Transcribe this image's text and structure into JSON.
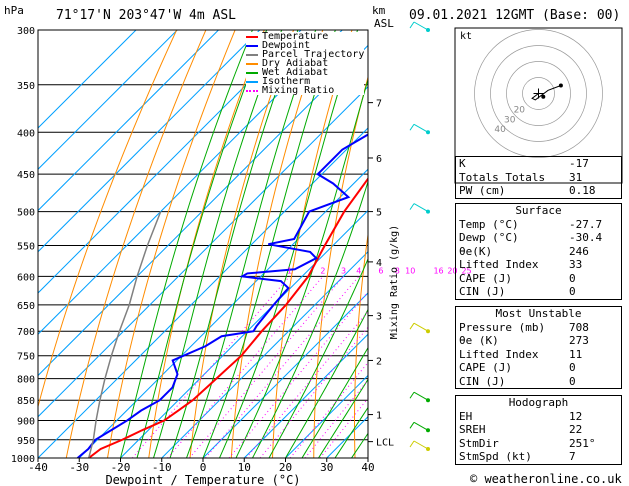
{
  "header": {
    "y_unit": "hPa",
    "location": "71°17'N  203°47'W  4m  ASL",
    "km_label": "km",
    "asl_label": "ASL",
    "datetime": "09.01.2021  12GMT  (Base: 00)"
  },
  "legend": [
    {
      "name": "Temperature",
      "color": "#ff0000",
      "style": "solid"
    },
    {
      "name": "Dewpoint",
      "color": "#0000ff",
      "style": "solid"
    },
    {
      "name": "Parcel Trajectory",
      "color": "#808080",
      "style": "solid"
    },
    {
      "name": "Dry Adiabat",
      "color": "#ff8c00",
      "style": "solid"
    },
    {
      "name": "Wet Adiabat",
      "color": "#00aa00",
      "style": "solid"
    },
    {
      "name": "Isotherm",
      "color": "#00a0ff",
      "style": "solid"
    },
    {
      "name": "Mixing Ratio",
      "color": "#ff00ff",
      "style": "dotted"
    }
  ],
  "chart_data": {
    "type": "line",
    "xlabel": "Dewpoint / Temperature (°C)",
    "ylabel_right": "Mixing Ratio (g/kg)",
    "xlim": [
      -40,
      40
    ],
    "ylim": [
      1000,
      300
    ],
    "y_scale": "log",
    "x_ticks": [
      -40,
      -30,
      -20,
      -10,
      0,
      10,
      20,
      30,
      40
    ],
    "pressure_ticks": [
      300,
      350,
      400,
      450,
      500,
      550,
      600,
      650,
      700,
      750,
      800,
      850,
      900,
      950,
      1000
    ],
    "km_ticks": [
      {
        "label": "7",
        "p": 368
      },
      {
        "label": "6",
        "p": 430
      },
      {
        "label": "5",
        "p": 500
      },
      {
        "label": "4",
        "p": 576
      },
      {
        "label": "3",
        "p": 670
      },
      {
        "label": "2",
        "p": 760
      },
      {
        "label": "1",
        "p": 885
      },
      {
        "label": "LCL",
        "p": 955
      }
    ],
    "mixing_ratio_labels": [
      "1",
      "2",
      "3",
      "4",
      "6",
      "8",
      "10",
      "16",
      "20",
      "25"
    ],
    "mixing_ratio_values": [
      1,
      2,
      3,
      4,
      6,
      8,
      10,
      16,
      20,
      25
    ],
    "series": [
      {
        "name": "Temperature",
        "color": "#ff0000",
        "p": [
          1000,
          975,
          950,
          925,
          900,
          875,
          850,
          800,
          750,
          700,
          650,
          600,
          550,
          500,
          450,
          400,
          350,
          320,
          300
        ],
        "t": [
          -27.7,
          -27,
          -24,
          -21.5,
          -18.5,
          -17.5,
          -16.5,
          -16,
          -15.5,
          -16.5,
          -17,
          -18.5,
          -22,
          -25.5,
          -28,
          -31,
          -35,
          -35.5,
          -34
        ]
      },
      {
        "name": "Dewpoint",
        "color": "#0000ff",
        "p": [
          1000,
          975,
          950,
          925,
          900,
          875,
          850,
          820,
          790,
          760,
          730,
          710,
          700,
          690,
          650,
          620,
          608,
          600,
          595,
          588,
          570,
          560,
          548,
          540,
          500,
          480,
          462,
          450,
          420,
          400,
          375,
          350,
          330,
          320,
          300
        ],
        "t": [
          -30.4,
          -30,
          -30.5,
          -29,
          -27.5,
          -26.5,
          -24.5,
          -24.5,
          -26.5,
          -31,
          -26.5,
          -25,
          -18.5,
          -19,
          -20,
          -20.5,
          -24,
          -34.5,
          -34,
          -23.5,
          -21,
          -24,
          -36,
          -31,
          -34,
          -28,
          -35,
          -41,
          -41,
          -38,
          -35,
          -30,
          -38,
          -42,
          -40
        ]
      },
      {
        "name": "Parcel Trajectory",
        "color": "#808080",
        "p": [
          1000,
          950,
          900,
          850,
          800,
          750,
          700,
          650,
          600,
          550,
          500
        ],
        "t": [
          -27.7,
          -31,
          -35,
          -39,
          -43,
          -47,
          -51,
          -55,
          -60,
          -65,
          -70
        ]
      }
    ],
    "wind_barbs": [
      {
        "p": 300,
        "color": "#00cccc"
      },
      {
        "p": 400,
        "color": "#00cccc"
      },
      {
        "p": 500,
        "color": "#00cccc"
      },
      {
        "p": 700,
        "color": "#cccc00"
      },
      {
        "p": 850,
        "color": "#00aa00"
      },
      {
        "p": 925,
        "color": "#00aa00"
      },
      {
        "p": 975,
        "color": "#cccc00"
      }
    ]
  },
  "hodograph": {
    "unit_label": "kt",
    "ring_labels": [
      "40",
      "30",
      "20"
    ],
    "trace_kt": [
      [
        0,
        0
      ],
      [
        -4,
        -3
      ],
      [
        -2,
        -4
      ],
      [
        6,
        2
      ],
      [
        14,
        5
      ]
    ],
    "storm_motion_kt": [
      3,
      -2
    ],
    "color": "#000000"
  },
  "indices": {
    "rows": [
      {
        "label": "K",
        "value": "-17"
      },
      {
        "label": "Totals Totals",
        "value": "31"
      },
      {
        "label": "PW (cm)",
        "value": "0.18"
      }
    ]
  },
  "surface": {
    "title": "Surface",
    "rows": [
      {
        "label": "Temp (°C)",
        "value": "-27.7"
      },
      {
        "label": "Dewp (°C)",
        "value": "-30.4"
      },
      {
        "label": "θe(K)",
        "value": "246"
      },
      {
        "label": "Lifted Index",
        "value": "33"
      },
      {
        "label": "CAPE (J)",
        "value": "0"
      },
      {
        "label": "CIN (J)",
        "value": "0"
      }
    ]
  },
  "most_unstable": {
    "title": "Most Unstable",
    "rows": [
      {
        "label": "Pressure (mb)",
        "value": "708"
      },
      {
        "label": "θe (K)",
        "value": "273"
      },
      {
        "label": "Lifted Index",
        "value": "11"
      },
      {
        "label": "CAPE (J)",
        "value": "0"
      },
      {
        "label": "CIN (J)",
        "value": "0"
      }
    ]
  },
  "hodograph_table": {
    "title": "Hodograph",
    "rows": [
      {
        "label": "EH",
        "value": "12"
      },
      {
        "label": "SREH",
        "value": "22"
      },
      {
        "label": "StmDir",
        "value": "251°"
      },
      {
        "label": "StmSpd (kt)",
        "value": "7"
      }
    ]
  },
  "footer": {
    "copyright": "© weatheronline.co.uk"
  }
}
